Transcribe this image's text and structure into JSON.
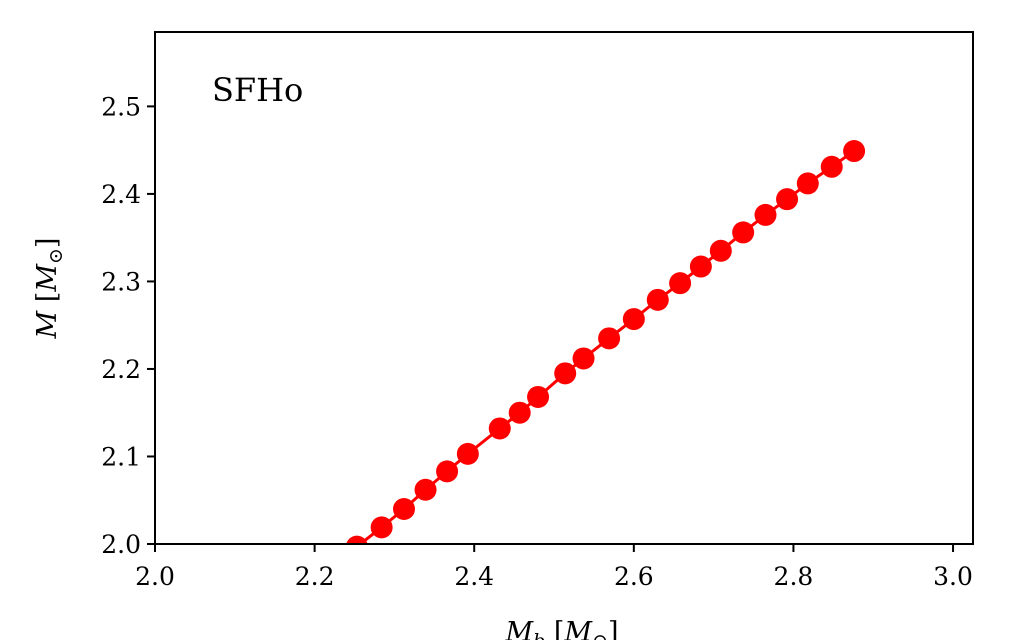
{
  "chart_data": {
    "type": "line",
    "title": "",
    "annotation": "SFHo",
    "xlabel": "M_b [M_⊙]",
    "xlabel_main": "M",
    "xlabel_sub": "b",
    "xlabel_bracket_open": " [",
    "xlabel_unit_main": "M",
    "xlabel_unit_sub": "⊙",
    "xlabel_bracket_close": "]",
    "ylabel": "M [M_⊙]",
    "ylabel_main": "M",
    "ylabel_bracket_open": " [",
    "ylabel_unit_main": "M",
    "ylabel_unit_sub": "⊙",
    "ylabel_bracket_close": "]",
    "xlim": [
      2.0,
      3.025
    ],
    "ylim": [
      2.0,
      2.585
    ],
    "xticks": [
      "2.0",
      "2.2",
      "2.4",
      "2.6",
      "2.8",
      "3.0"
    ],
    "yticks": [
      "2.0",
      "2.1",
      "2.2",
      "2.3",
      "2.4",
      "2.5"
    ],
    "grid": false,
    "series": [
      {
        "color": "#ff0000",
        "marker": "circle",
        "x": [
          2.253,
          2.284,
          2.312,
          2.339,
          2.366,
          2.392,
          2.432,
          2.457,
          2.48,
          2.514,
          2.537,
          2.569,
          2.6,
          2.63,
          2.658,
          2.684,
          2.709,
          2.737,
          2.765,
          2.792,
          2.818,
          2.848,
          2.876
        ],
        "y": [
          1.997,
          2.019,
          2.04,
          2.062,
          2.083,
          2.103,
          2.132,
          2.15,
          2.168,
          2.195,
          2.212,
          2.235,
          2.257,
          2.279,
          2.298,
          2.317,
          2.335,
          2.356,
          2.376,
          2.394,
          2.412,
          2.431,
          2.449
        ]
      }
    ]
  }
}
